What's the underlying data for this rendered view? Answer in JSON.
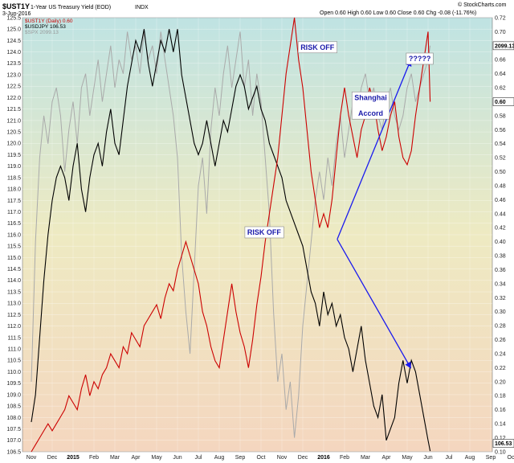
{
  "header": {
    "symbol": "$UST1Y",
    "subtitle": "1-Year US Treasury Yield (EOD)",
    "index": "INDX",
    "date": "3-Jun-2016",
    "ohlc": "Open 0.60   High 0.60   Low 0.60   Close 0.60   Chg -0.08 (-11.76%)",
    "brand": "© StockCharts.com"
  },
  "legend": [
    {
      "label": "$UST1Y (Daily) 0.60",
      "color": "#cc0000"
    },
    {
      "label": "$USDJPY 106.53",
      "color": "#000000"
    },
    {
      "label": "$SPX 2099.13",
      "color": "#aaaaaa"
    }
  ],
  "chart_data": {
    "type": "line",
    "left_axis": {
      "min": 106.5,
      "max": 125.5,
      "ticks": [
        "125.5",
        "125.0",
        "124.5",
        "124.0",
        "123.5",
        "123.0",
        "122.5",
        "122.0",
        "121.5",
        "121.0",
        "120.5",
        "120.0",
        "119.5",
        "119.0",
        "118.5",
        "118.0",
        "117.5",
        "117.0",
        "116.5",
        "116.0",
        "115.5",
        "115.0",
        "114.5",
        "114.0",
        "113.5",
        "113.0",
        "112.5",
        "112.0",
        "111.5",
        "111.0",
        "110.5",
        "110.0",
        "109.5",
        "109.0",
        "108.5",
        "108.0",
        "107.5",
        "107.0",
        "106.5"
      ]
    },
    "right_axis": {
      "min": 0.1,
      "max": 0.72,
      "ticks": [
        "0.72",
        "0.70",
        "0.68",
        "0.66",
        "0.64",
        "0.62",
        "0.60",
        "0.58",
        "0.56",
        "0.54",
        "0.52",
        "0.50",
        "0.48",
        "0.46",
        "0.44",
        "0.42",
        "0.40",
        "0.38",
        "0.36",
        "0.34",
        "0.32",
        "0.30",
        "0.28",
        "0.26",
        "0.24",
        "0.22",
        "0.20",
        "0.18",
        "0.16",
        "0.14",
        "0.12",
        "0.10"
      ]
    },
    "right_markers": [
      {
        "label": "2099.13",
        "value": 0.68
      },
      {
        "label": "0.60",
        "value": 0.6
      },
      {
        "label": "106.53",
        "value": 0.112
      }
    ],
    "x_months": [
      {
        "label": "Nov",
        "bold": false
      },
      {
        "label": "Dec",
        "bold": false
      },
      {
        "label": "2015",
        "bold": true
      },
      {
        "label": "Feb",
        "bold": false
      },
      {
        "label": "Mar",
        "bold": false
      },
      {
        "label": "Apr",
        "bold": false
      },
      {
        "label": "May",
        "bold": false
      },
      {
        "label": "Jun",
        "bold": false
      },
      {
        "label": "Jul",
        "bold": false
      },
      {
        "label": "Aug",
        "bold": false
      },
      {
        "label": "Sep",
        "bold": false
      },
      {
        "label": "Oct",
        "bold": false
      },
      {
        "label": "Nov",
        "bold": false
      },
      {
        "label": "Dec",
        "bold": false
      },
      {
        "label": "2016",
        "bold": true
      },
      {
        "label": "Feb",
        "bold": false
      },
      {
        "label": "Mar",
        "bold": false
      },
      {
        "label": "Apr",
        "bold": false
      },
      {
        "label": "May",
        "bold": false
      },
      {
        "label": "Jun",
        "bold": false
      },
      {
        "label": "Jul",
        "bold": false
      },
      {
        "label": "Aug",
        "bold": false
      },
      {
        "label": "Sep",
        "bold": false
      },
      {
        "label": "Oct",
        "bold": false
      }
    ],
    "series": [
      {
        "name": "$UST1Y (Daily) 0.60",
        "axis": "right",
        "color": "#cc0000",
        "t": [
          0.0,
          0.2,
          0.4,
          0.6,
          0.8,
          1.0,
          1.2,
          1.4,
          1.6,
          1.8,
          2.0,
          2.2,
          2.4,
          2.6,
          2.8,
          3.0,
          3.2,
          3.4,
          3.6,
          3.8,
          4.0,
          4.2,
          4.4,
          4.6,
          4.8,
          5.0,
          5.2,
          5.4,
          5.6,
          5.8,
          6.0,
          6.2,
          6.4,
          6.6,
          6.8,
          7.0,
          7.2,
          7.4,
          7.6,
          7.8,
          8.0,
          8.2,
          8.4,
          8.6,
          8.8,
          9.0,
          9.2,
          9.4,
          9.6,
          9.8,
          10.0,
          10.2,
          10.4,
          10.6,
          10.8,
          11.0,
          11.2,
          11.4,
          11.6,
          11.8,
          12.0,
          12.2,
          12.4,
          12.6,
          12.8,
          13.0,
          13.2,
          13.4,
          13.6,
          13.8,
          14.0,
          14.2,
          14.4,
          14.6,
          14.8,
          15.0,
          15.2,
          15.4,
          15.6,
          15.8,
          16.0,
          16.2,
          16.4,
          16.6,
          16.8,
          17.0,
          17.2,
          17.4,
          17.6,
          17.8,
          18.0,
          18.2,
          18.4,
          18.6,
          18.8,
          19.0,
          19.1
        ],
        "values": [
          0.1,
          0.11,
          0.12,
          0.13,
          0.14,
          0.13,
          0.14,
          0.15,
          0.16,
          0.18,
          0.17,
          0.16,
          0.19,
          0.21,
          0.18,
          0.2,
          0.19,
          0.21,
          0.22,
          0.24,
          0.23,
          0.22,
          0.25,
          0.24,
          0.27,
          0.26,
          0.25,
          0.28,
          0.29,
          0.3,
          0.31,
          0.29,
          0.32,
          0.34,
          0.33,
          0.36,
          0.38,
          0.4,
          0.38,
          0.36,
          0.34,
          0.3,
          0.28,
          0.25,
          0.23,
          0.22,
          0.26,
          0.3,
          0.34,
          0.3,
          0.27,
          0.25,
          0.22,
          0.26,
          0.31,
          0.35,
          0.4,
          0.44,
          0.48,
          0.52,
          0.58,
          0.64,
          0.68,
          0.72,
          0.66,
          0.62,
          0.56,
          0.5,
          0.46,
          0.42,
          0.44,
          0.42,
          0.46,
          0.52,
          0.58,
          0.62,
          0.58,
          0.55,
          0.52,
          0.56,
          0.58,
          0.62,
          0.6,
          0.56,
          0.53,
          0.55,
          0.58,
          0.6,
          0.55,
          0.52,
          0.51,
          0.53,
          0.58,
          0.62,
          0.66,
          0.7,
          0.6
        ]
      },
      {
        "name": "$USDJPY 106.53",
        "axis": "left",
        "color": "#000000",
        "t": [
          0.0,
          0.2,
          0.4,
          0.6,
          0.8,
          1.0,
          1.2,
          1.4,
          1.6,
          1.8,
          2.0,
          2.2,
          2.4,
          2.6,
          2.8,
          3.0,
          3.2,
          3.4,
          3.6,
          3.8,
          4.0,
          4.2,
          4.4,
          4.6,
          4.8,
          5.0,
          5.2,
          5.4,
          5.6,
          5.8,
          6.0,
          6.2,
          6.4,
          6.6,
          6.8,
          7.0,
          7.2,
          7.4,
          7.6,
          7.8,
          8.0,
          8.2,
          8.4,
          8.6,
          8.8,
          9.0,
          9.2,
          9.4,
          9.6,
          9.8,
          10.0,
          10.2,
          10.4,
          10.6,
          10.8,
          11.0,
          11.2,
          11.4,
          11.6,
          11.8,
          12.0,
          12.2,
          12.4,
          12.6,
          12.8,
          13.0,
          13.2,
          13.4,
          13.6,
          13.8,
          14.0,
          14.2,
          14.4,
          14.6,
          14.8,
          15.0,
          15.2,
          15.4,
          15.6,
          15.8,
          16.0,
          16.2,
          16.4,
          16.6,
          16.8,
          17.0,
          17.2,
          17.4,
          17.6,
          17.8,
          18.0,
          18.2,
          18.4,
          18.6,
          18.8,
          19.0,
          19.1
        ],
        "values": [
          107.8,
          109.0,
          111.5,
          114.0,
          116.0,
          117.5,
          118.5,
          119.0,
          118.5,
          117.5,
          119.0,
          120.0,
          118.0,
          117.0,
          118.5,
          119.5,
          120.0,
          119.0,
          120.5,
          121.5,
          120.0,
          119.5,
          121.0,
          122.5,
          123.5,
          124.5,
          124.0,
          125.0,
          123.5,
          122.5,
          123.5,
          124.5,
          124.0,
          125.0,
          124.0,
          125.0,
          123.0,
          122.0,
          121.0,
          120.0,
          119.5,
          120.0,
          121.0,
          120.0,
          119.0,
          120.0,
          121.0,
          120.5,
          121.5,
          122.5,
          123.0,
          122.5,
          121.5,
          122.0,
          122.5,
          121.5,
          121.0,
          120.0,
          119.5,
          119.0,
          118.5,
          117.5,
          117.0,
          116.5,
          116.0,
          115.5,
          114.5,
          113.5,
          113.0,
          112.0,
          113.5,
          112.5,
          113.0,
          112.0,
          112.5,
          111.5,
          111.0,
          110.0,
          111.0,
          112.0,
          110.5,
          109.5,
          108.5,
          108.0,
          109.0,
          107.0,
          107.5,
          108.0,
          109.5,
          110.5,
          109.5,
          110.5,
          110.0,
          109.0,
          108.0,
          107.0,
          106.53
        ]
      },
      {
        "name": "$SPX 2099.13",
        "axis": "right",
        "color": "#aaaaaa",
        "t": [
          0.0,
          0.2,
          0.4,
          0.6,
          0.8,
          1.0,
          1.2,
          1.4,
          1.6,
          1.8,
          2.0,
          2.2,
          2.4,
          2.6,
          2.8,
          3.0,
          3.2,
          3.4,
          3.6,
          3.8,
          4.0,
          4.2,
          4.4,
          4.6,
          4.8,
          5.0,
          5.2,
          5.4,
          5.6,
          5.8,
          6.0,
          6.2,
          6.4,
          6.6,
          6.8,
          7.0,
          7.2,
          7.4,
          7.6,
          7.8,
          8.0,
          8.2,
          8.4,
          8.6,
          8.8,
          9.0,
          9.2,
          9.4,
          9.6,
          9.8,
          10.0,
          10.2,
          10.4,
          10.6,
          10.8,
          11.0,
          11.2,
          11.4,
          11.6,
          11.8,
          12.0,
          12.2,
          12.4,
          12.6,
          12.8,
          13.0,
          13.2,
          13.4,
          13.6,
          13.8,
          14.0,
          14.2,
          14.4,
          14.6,
          14.8,
          15.0,
          15.2,
          15.4,
          15.6,
          15.8,
          16.0,
          16.2,
          16.4,
          16.6,
          16.8,
          17.0,
          17.2,
          17.4,
          17.6,
          17.8,
          18.0,
          18.2,
          18.4,
          18.6,
          18.8,
          19.0,
          19.1
        ],
        "values": [
          0.2,
          0.4,
          0.52,
          0.58,
          0.54,
          0.6,
          0.62,
          0.58,
          0.5,
          0.56,
          0.6,
          0.54,
          0.62,
          0.64,
          0.58,
          0.62,
          0.66,
          0.6,
          0.64,
          0.68,
          0.62,
          0.66,
          0.64,
          0.7,
          0.66,
          0.68,
          0.64,
          0.7,
          0.66,
          0.68,
          0.64,
          0.7,
          0.66,
          0.62,
          0.58,
          0.52,
          0.38,
          0.3,
          0.24,
          0.36,
          0.48,
          0.52,
          0.44,
          0.56,
          0.62,
          0.58,
          0.64,
          0.68,
          0.62,
          0.66,
          0.7,
          0.62,
          0.66,
          0.58,
          0.64,
          0.6,
          0.52,
          0.44,
          0.3,
          0.2,
          0.24,
          0.16,
          0.2,
          0.12,
          0.18,
          0.28,
          0.34,
          0.4,
          0.46,
          0.5,
          0.46,
          0.52,
          0.48,
          0.54,
          0.58,
          0.52,
          0.56,
          0.6,
          0.58,
          0.62,
          0.64,
          0.6,
          0.62,
          0.58,
          0.56,
          0.6,
          0.62,
          0.58,
          0.56,
          0.58,
          0.62,
          0.64,
          0.6,
          0.62,
          0.64,
          0.66,
          0.68
        ]
      }
    ]
  },
  "annotations": [
    {
      "text": "RISK OFF",
      "anchor": {
        "t": 11.15,
        "v": 116.0
      }
    },
    {
      "text": "RISK OFF",
      "anchor": {
        "t": 13.7,
        "v": 124.1
      }
    },
    {
      "text": "Shanghai",
      "anchor": {
        "t": 16.25,
        "v": 121.9
      }
    },
    {
      "text": "Accord",
      "anchor": {
        "t": 16.25,
        "v": 121.2
      }
    },
    {
      "text": "?????",
      "anchor": {
        "t": 18.6,
        "v": 123.6
      }
    }
  ],
  "arrows": [
    {
      "from": {
        "t": 14.65,
        "v": 115.8
      },
      "to": {
        "t": 18.15,
        "v": 123.6
      }
    },
    {
      "from": {
        "t": 14.65,
        "v": 115.8
      },
      "to": {
        "t": 18.15,
        "v": 110.2
      }
    }
  ]
}
